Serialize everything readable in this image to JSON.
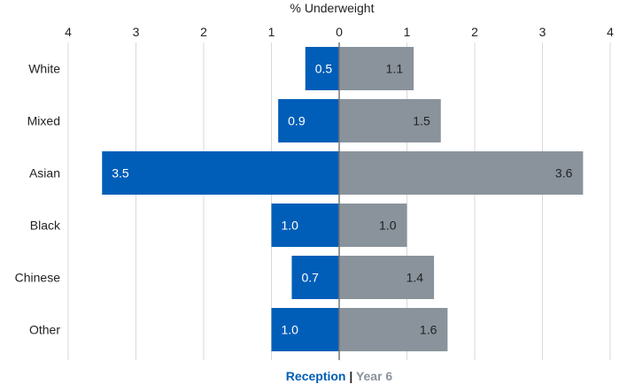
{
  "chart_data": {
    "type": "bar",
    "orientation": "horizontal-diverging",
    "title": "% Underweight",
    "categories": [
      "White",
      "Mixed",
      "Asian",
      "Black",
      "Chinese",
      "Other"
    ],
    "series": [
      {
        "name": "Reception",
        "side": "left",
        "color": "#005EB8",
        "values": [
          0.5,
          0.9,
          3.5,
          1.0,
          0.7,
          1.0
        ],
        "labels": [
          "0.5",
          "0.9",
          "3.5",
          "1.0",
          "0.7",
          "1.0"
        ]
      },
      {
        "name": "Year 6",
        "side": "right",
        "color": "#8A939C",
        "values": [
          1.1,
          1.5,
          3.6,
          1.0,
          1.4,
          1.6
        ],
        "labels": [
          "1.1",
          "1.5",
          "3.6",
          "1.0",
          "1.4",
          "1.6"
        ]
      }
    ],
    "xlim": [
      -4,
      4
    ],
    "tick_labels_left": [
      "4",
      "3",
      "2",
      "1"
    ],
    "tick_labels_right": [
      "0",
      "1",
      "2",
      "3",
      "4"
    ],
    "grid": true,
    "legend_separator": "|"
  }
}
